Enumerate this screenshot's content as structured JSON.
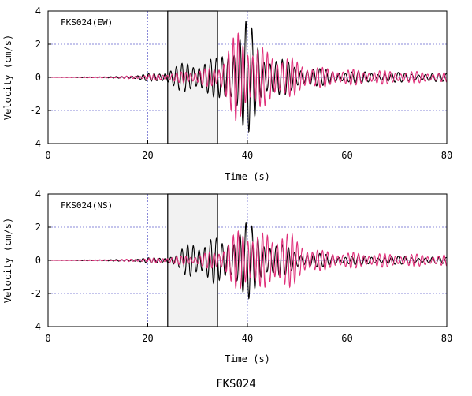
{
  "figure_title": "FKS024",
  "chart_data": [
    {
      "type": "line",
      "title": "FKS024(EW)",
      "xlabel": "Time (s)",
      "ylabel": "Velocity (cm/s)",
      "xlim": [
        0,
        80
      ],
      "ylim": [
        -4,
        4
      ],
      "xticks": [
        0,
        20,
        40,
        60,
        80
      ],
      "yticks": [
        -4,
        -2,
        0,
        2,
        4
      ],
      "grid": "dotted, blue",
      "shaded_window": [
        24,
        34
      ],
      "colors": {
        "series_a": "#000000",
        "series_b": "#e0307a",
        "grid": "#8a8ad8",
        "window_fill": "#f2f2f2"
      },
      "series": [
        {
          "color": "#000000",
          "envelope": [
            [
              0,
              0
            ],
            [
              14,
              0.05
            ],
            [
              18,
              0.15
            ],
            [
              22,
              0.3
            ],
            [
              25,
              0.6
            ],
            [
              28,
              1.0
            ],
            [
              31,
              1.1
            ],
            [
              34,
              1.2
            ],
            [
              36,
              2.0
            ],
            [
              38,
              2.8
            ],
            [
              39.5,
              3.6
            ],
            [
              41,
              3.0
            ],
            [
              43,
              1.8
            ],
            [
              46,
              1.2
            ],
            [
              50,
              0.8
            ],
            [
              55,
              0.5
            ],
            [
              60,
              0.4
            ],
            [
              70,
              0.3
            ],
            [
              80,
              0.25
            ]
          ],
          "period": [
            [
              0,
              1.0
            ],
            [
              80,
              1.4
            ]
          ]
        },
        {
          "color": "#e0307a",
          "envelope": [
            [
              0,
              0
            ],
            [
              14,
              0.05
            ],
            [
              18,
              0.12
            ],
            [
              22,
              0.2
            ],
            [
              26,
              0.3
            ],
            [
              30,
              0.5
            ],
            [
              34,
              0.6
            ],
            [
              36,
              2.0
            ],
            [
              38,
              2.8
            ],
            [
              40,
              2.5
            ],
            [
              42,
              2.1
            ],
            [
              44,
              1.6
            ],
            [
              47,
              1.5
            ],
            [
              50,
              1.0
            ],
            [
              55,
              0.6
            ],
            [
              60,
              0.5
            ],
            [
              70,
              0.4
            ],
            [
              80,
              0.3
            ]
          ],
          "period": [
            [
              0,
              0.85
            ],
            [
              80,
              1.1
            ]
          ]
        }
      ]
    },
    {
      "type": "line",
      "title": "FKS024(NS)",
      "xlabel": "Time (s)",
      "ylabel": "Velocity (cm/s)",
      "xlim": [
        0,
        80
      ],
      "ylim": [
        -4,
        4
      ],
      "xticks": [
        0,
        20,
        40,
        60,
        80
      ],
      "yticks": [
        -4,
        -2,
        0,
        2,
        4
      ],
      "grid": "dotted, blue",
      "shaded_window": [
        24,
        34
      ],
      "colors": {
        "series_a": "#000000",
        "series_b": "#e0307a",
        "grid": "#8a8ad8",
        "window_fill": "#f2f2f2"
      },
      "series": [
        {
          "color": "#000000",
          "envelope": [
            [
              0,
              0
            ],
            [
              14,
              0.05
            ],
            [
              18,
              0.1
            ],
            [
              22,
              0.2
            ],
            [
              26,
              0.3
            ],
            [
              29,
              1.6
            ],
            [
              31,
              1.0
            ],
            [
              33,
              1.4
            ],
            [
              35,
              1.3
            ],
            [
              37,
              1.8
            ],
            [
              40,
              2.4
            ],
            [
              42,
              1.8
            ],
            [
              45,
              1.2
            ],
            [
              50,
              0.6
            ],
            [
              55,
              0.4
            ],
            [
              60,
              0.3
            ],
            [
              70,
              0.25
            ],
            [
              80,
              0.2
            ]
          ],
          "period": [
            [
              0,
              1.0
            ],
            [
              80,
              1.4
            ]
          ]
        },
        {
          "color": "#e0307a",
          "envelope": [
            [
              0,
              0
            ],
            [
              14,
              0.05
            ],
            [
              18,
              0.1
            ],
            [
              22,
              0.15
            ],
            [
              26,
              0.25
            ],
            [
              30,
              0.35
            ],
            [
              34,
              0.6
            ],
            [
              36,
              1.2
            ],
            [
              38,
              1.8
            ],
            [
              40,
              2.2
            ],
            [
              42,
              1.8
            ],
            [
              45,
              1.5
            ],
            [
              47,
              2.3
            ],
            [
              50,
              1.2
            ],
            [
              55,
              0.6
            ],
            [
              60,
              0.5
            ],
            [
              70,
              0.4
            ],
            [
              80,
              0.35
            ]
          ],
          "period": [
            [
              0,
              0.85
            ],
            [
              80,
              1.1
            ]
          ]
        }
      ]
    }
  ]
}
